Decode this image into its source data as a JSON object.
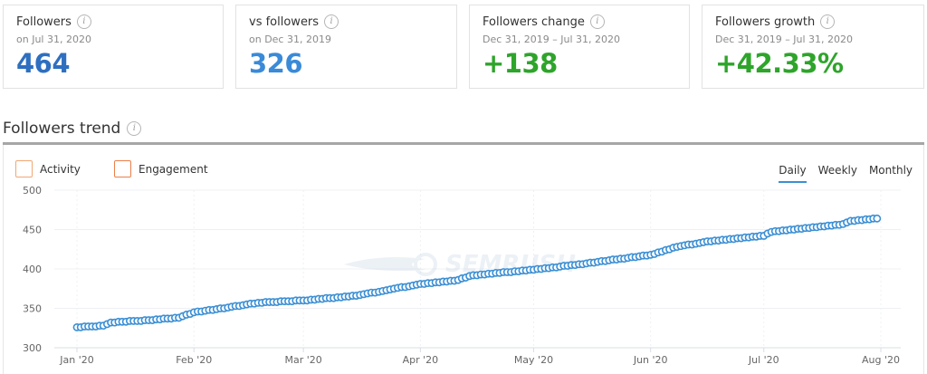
{
  "cards": [
    {
      "title": "Followers",
      "subtitle": "on Jul 31, 2020",
      "value": "464",
      "color": "#2e6fc0"
    },
    {
      "title": "vs followers",
      "subtitle": "on Dec 31, 2019",
      "value": "326",
      "color": "#3a8ad8"
    },
    {
      "title": "Followers change",
      "subtitle": "Dec 31, 2019 – Jul 31, 2020",
      "value": "+138",
      "color": "#2ea42b"
    },
    {
      "title": "Followers growth",
      "subtitle": "Dec 31, 2019 – Jul 31, 2020",
      "value": "+42.33%",
      "color": "#2ea42b"
    }
  ],
  "info_icon": "info-icon",
  "section": {
    "title": "Followers trend"
  },
  "legend": [
    {
      "label": "Activity",
      "checked": false,
      "color": "#f0a774"
    },
    {
      "label": "Engagement",
      "checked": false,
      "color": "#ec7f4a"
    }
  ],
  "tabs": [
    {
      "label": "Daily",
      "active": true
    },
    {
      "label": "Weekly",
      "active": false
    },
    {
      "label": "Monthly",
      "active": false
    }
  ],
  "colors": {
    "series": "#3b8fd4",
    "active_tab": "#3b8fd4"
  },
  "chart_data": {
    "type": "line",
    "title": "Followers trend",
    "xlabel": "",
    "ylabel": "",
    "ylim": [
      300,
      500
    ],
    "yticks": [
      300,
      350,
      400,
      450,
      500
    ],
    "xticks": [
      "Jan '20",
      "Feb '20",
      "Mar '20",
      "Apr '20",
      "May '20",
      "Jun '20",
      "Jul '20",
      "Aug '20"
    ],
    "grid": true,
    "legend_position": "top-left",
    "marker": "hollow-circle",
    "series": [
      {
        "name": "Followers",
        "granularity": "daily",
        "start": "Jan 1, 2020",
        "end": "Jul 31, 2020",
        "anchors": [
          {
            "date": "Jan 1",
            "value": 326
          },
          {
            "date": "Jan 8",
            "value": 328
          },
          {
            "date": "Jan 10",
            "value": 332
          },
          {
            "date": "Jan 20",
            "value": 335
          },
          {
            "date": "Jan 28",
            "value": 338
          },
          {
            "date": "Feb 1",
            "value": 345
          },
          {
            "date": "Feb 7",
            "value": 349
          },
          {
            "date": "Feb 18",
            "value": 357
          },
          {
            "date": "Mar 1",
            "value": 360
          },
          {
            "date": "Mar 15",
            "value": 366
          },
          {
            "date": "Apr 1",
            "value": 381
          },
          {
            "date": "Apr 10",
            "value": 385
          },
          {
            "date": "Apr 15",
            "value": 392
          },
          {
            "date": "May 1",
            "value": 399
          },
          {
            "date": "May 15",
            "value": 407
          },
          {
            "date": "Jun 1",
            "value": 418
          },
          {
            "date": "Jun 8",
            "value": 428
          },
          {
            "date": "Jun 15",
            "value": 434
          },
          {
            "date": "Jul 1",
            "value": 442
          },
          {
            "date": "Jul 3",
            "value": 447
          },
          {
            "date": "Jul 15",
            "value": 453
          },
          {
            "date": "Jul 22",
            "value": 457
          },
          {
            "date": "Jul 24",
            "value": 461
          },
          {
            "date": "Jul 31",
            "value": 464
          }
        ]
      }
    ]
  }
}
